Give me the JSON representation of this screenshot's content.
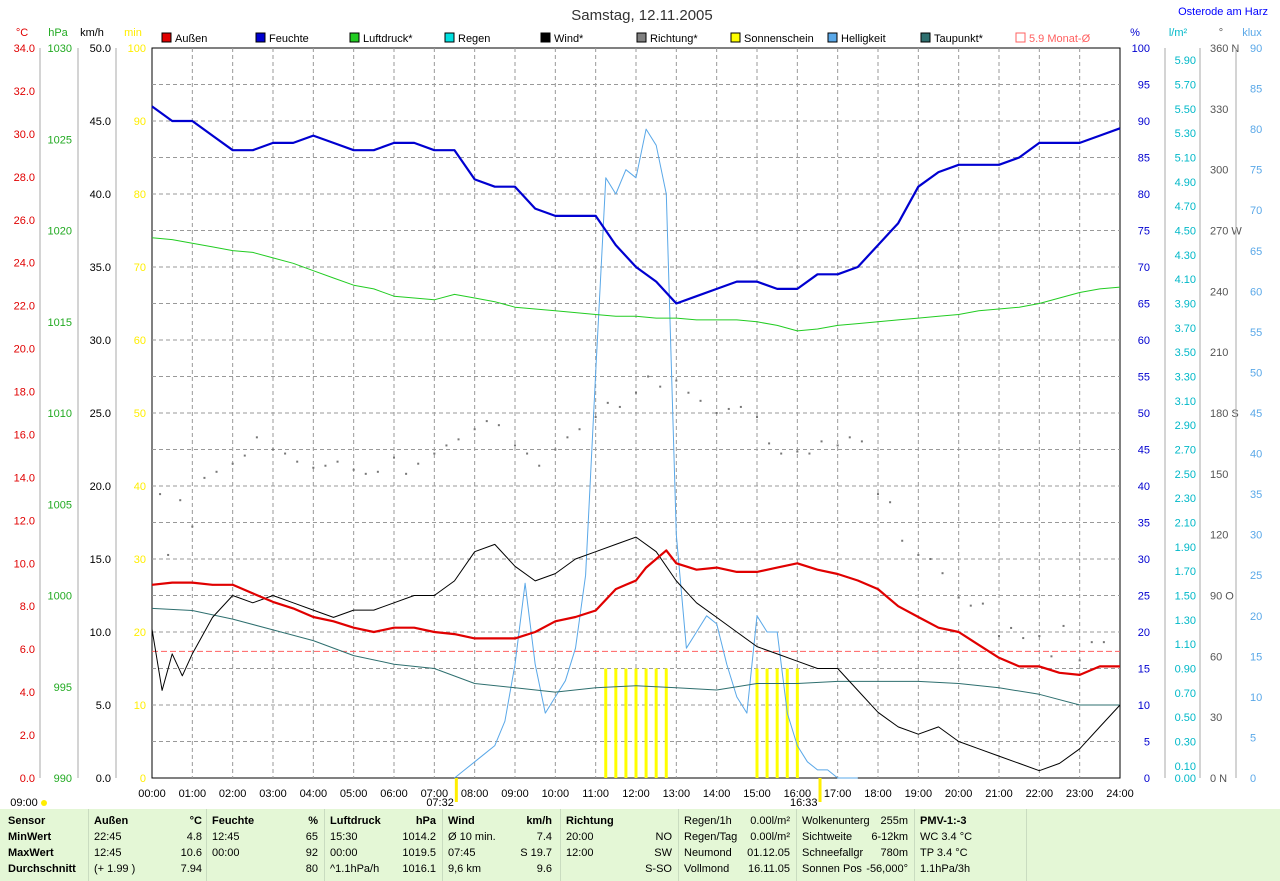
{
  "header": {
    "title": "Samstag, 12.11.2005",
    "location": "Osterode am Harz"
  },
  "colors": {
    "aussen": "#e00000",
    "feuchte": "#0000d0",
    "luftdruck": "#22cc22",
    "regen": "#00e0e0",
    "wind": "#000000",
    "richtung": "#808080",
    "sonne": "#ffff00",
    "helligkeit": "#5aa8e8",
    "taupunkt": "#2e6f6f",
    "monat": "#ff6060"
  },
  "legend": [
    {
      "label": "Außen",
      "color": "#e00000"
    },
    {
      "label": "Feuchte",
      "color": "#0000d0"
    },
    {
      "label": "Luftdruck*",
      "color": "#22cc22"
    },
    {
      "label": "Regen",
      "color": "#00e0e0"
    },
    {
      "label": "Wind*",
      "color": "#000000"
    },
    {
      "label": "Richtung*",
      "color": "#808080"
    },
    {
      "label": "Sonnenschein",
      "color": "#ffff00"
    },
    {
      "label": "Helligkeit",
      "color": "#5aa8e8"
    },
    {
      "label": "Taupunkt*",
      "color": "#2e6f6f"
    },
    {
      "label": "5.9 Monat-Ø",
      "color": "#ff6060"
    }
  ],
  "chart_data": {
    "type": "line",
    "x_ticks": [
      "00:00",
      "01:00",
      "02:00",
      "03:00",
      "04:00",
      "05:00",
      "06:00",
      "07:00",
      "08:00",
      "09:00",
      "10:00",
      "11:00",
      "12:00",
      "13:00",
      "14:00",
      "15:00",
      "16:00",
      "17:00",
      "18:00",
      "19:00",
      "20:00",
      "21:00",
      "22:00",
      "23:00",
      "24:00"
    ],
    "axes": {
      "temp": {
        "unit": "°C",
        "ticks": [
          "34.0",
          "32.0",
          "30.0",
          "28.0",
          "26.0",
          "24.0",
          "22.0",
          "20.0",
          "18.0",
          "16.0",
          "14.0",
          "12.0",
          "10.0",
          "8.0",
          "6.0",
          "4.0",
          "2.0",
          "0.0"
        ]
      },
      "hpa": {
        "unit": "hPa",
        "ticks": [
          "1030",
          "1025",
          "1020",
          "1015",
          "1010",
          "1005",
          "1000",
          "995",
          "990"
        ]
      },
      "kmh": {
        "unit": "km/h",
        "ticks": [
          "50.0",
          "45.0",
          "40.0",
          "35.0",
          "30.0",
          "25.0",
          "20.0",
          "15.0",
          "10.0",
          "5.0",
          "0.0"
        ]
      },
      "min": {
        "unit": "min",
        "ticks": [
          "100",
          "90",
          "80",
          "70",
          "60",
          "50",
          "40",
          "30",
          "20",
          "10",
          "0"
        ]
      },
      "pct": {
        "unit": "%",
        "ticks": [
          "100",
          "95",
          "90",
          "85",
          "80",
          "75",
          "70",
          "65",
          "60",
          "55",
          "50",
          "45",
          "40",
          "35",
          "30",
          "25",
          "20",
          "15",
          "10",
          "5",
          "0"
        ]
      },
      "rain": {
        "unit": "l/m²",
        "ticks": [
          "5.90",
          "5.70",
          "5.50",
          "5.30",
          "5.10",
          "4.90",
          "4.70",
          "4.50",
          "4.30",
          "4.10",
          "3.90",
          "3.70",
          "3.50",
          "3.30",
          "3.10",
          "2.90",
          "2.70",
          "2.50",
          "2.30",
          "2.10",
          "1.90",
          "1.70",
          "1.50",
          "1.30",
          "1.10",
          "0.90",
          "0.70",
          "0.50",
          "0.30",
          "0.10",
          "0.00"
        ]
      },
      "deg": {
        "unit": "°",
        "ticks": [
          "360 N",
          "330",
          "300",
          "270 W",
          "240",
          "210",
          "180 S",
          "150",
          "120",
          "90 O",
          "60",
          "30",
          "0 N"
        ]
      },
      "klux": {
        "unit": "klux",
        "ticks": [
          "90",
          "85",
          "80",
          "75",
          "70",
          "65",
          "60",
          "55",
          "50",
          "45",
          "40",
          "35",
          "30",
          "25",
          "20",
          "15",
          "10",
          "5",
          "0"
        ]
      }
    },
    "series": [
      {
        "name": "Außen",
        "unit": "°C",
        "x": [
          0,
          0.5,
          1,
          1.5,
          2,
          2.5,
          3,
          3.5,
          4,
          4.5,
          5,
          5.5,
          6,
          6.5,
          7,
          7.5,
          8,
          8.5,
          9,
          9.5,
          10,
          10.5,
          11,
          11.25,
          11.5,
          11.75,
          12,
          12.25,
          12.5,
          12.75,
          13,
          13.5,
          14,
          14.5,
          15,
          15.5,
          16,
          16.5,
          17,
          17.5,
          18,
          18.5,
          19,
          19.5,
          20,
          20.5,
          21,
          21.5,
          22,
          22.5,
          23,
          23.5,
          24
        ],
        "y": [
          9.0,
          9.1,
          9.1,
          9.0,
          9.0,
          8.6,
          8.2,
          7.9,
          7.5,
          7.3,
          7.0,
          6.8,
          7.0,
          7.0,
          6.8,
          6.7,
          6.5,
          6.5,
          6.5,
          6.8,
          7.3,
          7.5,
          7.8,
          8.3,
          8.8,
          9.0,
          9.2,
          9.8,
          10.2,
          10.6,
          10.0,
          9.7,
          9.8,
          9.6,
          9.6,
          9.8,
          10.0,
          9.7,
          9.5,
          9.2,
          8.8,
          8.0,
          7.5,
          7.0,
          6.8,
          6.2,
          5.6,
          5.2,
          5.2,
          4.9,
          4.8,
          5.2,
          5.2
        ]
      },
      {
        "name": "Feuchte",
        "unit": "%",
        "x": [
          0,
          0.5,
          1,
          1.5,
          2,
          2.5,
          3,
          3.5,
          4,
          4.5,
          5,
          5.5,
          6,
          6.5,
          7,
          7.5,
          8,
          8.5,
          9,
          9.5,
          10,
          10.5,
          11,
          11.5,
          12,
          12.5,
          13,
          13.5,
          14,
          14.5,
          15,
          15.5,
          16,
          16.5,
          17,
          17.5,
          18,
          18.5,
          19,
          19.5,
          20,
          20.5,
          21,
          21.5,
          22,
          22.5,
          23,
          23.5,
          24
        ],
        "y": [
          92,
          90,
          90,
          88,
          86,
          86,
          87,
          87,
          88,
          87,
          86,
          86,
          87,
          87,
          86,
          86,
          82,
          81,
          81,
          78,
          77,
          77,
          77,
          73,
          70,
          68,
          65,
          66,
          67,
          68,
          68,
          67,
          67,
          69,
          69,
          70,
          73,
          76,
          81,
          83,
          84,
          84,
          84,
          85,
          87,
          87,
          87,
          88,
          89
        ]
      },
      {
        "name": "Luftdruck*",
        "unit": "hPa",
        "x": [
          0,
          0.5,
          1,
          1.5,
          2,
          2.5,
          3,
          3.5,
          4,
          4.5,
          5,
          5.5,
          6,
          6.5,
          7,
          7.5,
          8,
          8.5,
          9,
          9.5,
          10,
          10.5,
          11,
          11.5,
          12,
          12.5,
          13,
          13.5,
          14,
          14.5,
          15,
          15.5,
          16,
          16.5,
          17,
          17.5,
          18,
          18.5,
          19,
          19.5,
          20,
          20.5,
          21,
          21.5,
          22,
          22.5,
          23,
          23.5,
          24
        ],
        "y": [
          1019.6,
          1019.5,
          1019.3,
          1019.1,
          1018.9,
          1018.8,
          1018.5,
          1018.2,
          1017.8,
          1017.4,
          1017.0,
          1016.8,
          1016.4,
          1016.3,
          1016.2,
          1016.5,
          1016.3,
          1016.1,
          1015.8,
          1015.7,
          1015.6,
          1015.5,
          1015.4,
          1015.3,
          1015.3,
          1015.2,
          1015.2,
          1015.1,
          1015.1,
          1015.1,
          1015.0,
          1014.8,
          1014.5,
          1014.6,
          1014.8,
          1014.9,
          1015.0,
          1015.1,
          1015.2,
          1015.3,
          1015.4,
          1015.6,
          1015.7,
          1015.8,
          1016.0,
          1016.3,
          1016.6,
          1016.8,
          1016.9
        ]
      },
      {
        "name": "Wind*",
        "unit": "km/h",
        "x": [
          0,
          0.25,
          0.5,
          0.75,
          1,
          1.5,
          2,
          2.5,
          3,
          3.5,
          4,
          4.5,
          5,
          5.5,
          6,
          6.5,
          7,
          7.5,
          8,
          8.5,
          9,
          9.5,
          10,
          10.5,
          11,
          11.5,
          12,
          12.5,
          13,
          13.5,
          14,
          14.5,
          15,
          15.5,
          16,
          16.5,
          17,
          17.5,
          18,
          18.5,
          19,
          19.5,
          20,
          20.5,
          21,
          21.5,
          22,
          22.5,
          23,
          23.5,
          24
        ],
        "y": [
          10.2,
          6.0,
          8.5,
          7.0,
          8.5,
          11.0,
          12.5,
          12.0,
          12.5,
          12.0,
          11.5,
          11.0,
          11.5,
          11.5,
          12.0,
          12.5,
          12.5,
          13.5,
          15.5,
          16.0,
          14.5,
          13.5,
          14.0,
          15.0,
          15.5,
          16.0,
          16.5,
          15.5,
          13.5,
          12.0,
          11.0,
          10.0,
          9.0,
          8.5,
          8.0,
          7.5,
          7.5,
          6.0,
          4.5,
          3.5,
          3.0,
          3.5,
          2.5,
          2.0,
          1.5,
          1.0,
          0.5,
          1.0,
          2.0,
          3.5,
          5.0
        ]
      },
      {
        "name": "Taupunkt*",
        "unit": "°C",
        "x": [
          0,
          1,
          2,
          3,
          4,
          5,
          6,
          7,
          8,
          9,
          10,
          11,
          12,
          13,
          14,
          15,
          16,
          17,
          18,
          19,
          20,
          21,
          22,
          23,
          24
        ],
        "y": [
          7.9,
          7.8,
          7.4,
          6.9,
          6.4,
          5.7,
          5.3,
          5.1,
          4.4,
          4.2,
          4.0,
          4.2,
          4.3,
          4.2,
          4.1,
          4.4,
          4.4,
          4.5,
          4.5,
          4.5,
          4.4,
          4.2,
          3.9,
          3.4,
          3.4
        ]
      },
      {
        "name": "Helligkeit",
        "unit": "klux",
        "x": [
          7.5,
          7.75,
          8,
          8.25,
          8.5,
          8.75,
          9,
          9.25,
          9.5,
          9.75,
          10,
          10.25,
          10.5,
          10.75,
          11,
          11.25,
          11.5,
          11.75,
          12,
          12.25,
          12.5,
          12.75,
          13,
          13.25,
          13.5,
          13.75,
          14,
          14.25,
          14.5,
          14.75,
          15,
          15.25,
          15.5,
          15.75,
          16,
          16.25,
          16.5,
          16.75,
          17,
          17.5
        ],
        "y": [
          0,
          1,
          2,
          3,
          4,
          7,
          14,
          24,
          14,
          8,
          10,
          12,
          16,
          25,
          50,
          74,
          72,
          75,
          74,
          80,
          78,
          72,
          30,
          16,
          18,
          20,
          19,
          14,
          10,
          8,
          20,
          18,
          18,
          8,
          4,
          2,
          1,
          1,
          0,
          0
        ]
      },
      {
        "name": "Richtung*",
        "unit": "°",
        "type": "scatter",
        "x": [
          0.2,
          0.4,
          0.7,
          1.0,
          1.3,
          1.6,
          2.0,
          2.3,
          2.6,
          3.0,
          3.3,
          3.6,
          4.0,
          4.3,
          4.6,
          5.0,
          5.3,
          5.6,
          6.0,
          6.3,
          6.6,
          7.0,
          7.3,
          7.6,
          8.0,
          8.3,
          8.6,
          9.0,
          9.3,
          9.6,
          10.0,
          10.3,
          10.6,
          11.0,
          11.3,
          11.6,
          12.0,
          12.3,
          12.6,
          13.0,
          13.3,
          13.6,
          14.0,
          14.3,
          14.6,
          15.0,
          15.3,
          15.6,
          16.0,
          16.3,
          16.6,
          17.0,
          17.3,
          17.6,
          18.0,
          18.3,
          18.6,
          19.0,
          19.3,
          19.6,
          20.0,
          20.3,
          20.6,
          21.0,
          21.3,
          21.6,
          22.0,
          22.3,
          22.6,
          23.0,
          23.3,
          23.6
        ],
        "y": [
          140,
          110,
          137,
          124,
          148,
          151,
          155,
          159,
          168,
          162,
          160,
          156,
          153,
          154,
          156,
          152,
          150,
          151,
          158,
          150,
          155,
          160,
          164,
          167,
          172,
          176,
          174,
          164,
          160,
          154,
          162,
          168,
          172,
          178,
          185,
          183,
          190,
          198,
          193,
          196,
          190,
          186,
          180,
          182,
          183,
          178,
          165,
          160,
          161,
          160,
          166,
          164,
          168,
          166,
          140,
          136,
          117,
          110,
          108,
          101,
          89,
          85,
          86,
          70,
          74,
          69,
          70,
          60,
          75,
          58,
          67,
          67
        ]
      },
      {
        "name": "Sonnenschein",
        "unit": "min",
        "type": "bar",
        "x": [
          11.25,
          11.5,
          11.75,
          12.0,
          12.25,
          12.5,
          12.75,
          15.0,
          15.25,
          15.5,
          15.75,
          16.0
        ],
        "y": [
          15,
          15,
          15,
          15,
          15,
          15,
          15,
          15,
          15,
          15,
          15,
          15
        ]
      }
    ],
    "reference_lines": [
      {
        "name": "5.9 Monat-Ø",
        "value": 5.9,
        "unit": "°C"
      }
    ],
    "markers": {
      "sunrise": "07:32",
      "sunset": "16:33",
      "start": "09:00"
    }
  },
  "footer": {
    "col1": {
      "header": "Sensor",
      "rows": [
        "MinWert",
        "MaxWert",
        "Durchschnitt"
      ]
    },
    "col2": {
      "header": "Außen",
      "unit": "°C",
      "rows": [
        [
          "22:45",
          "4.8"
        ],
        [
          "12:45",
          "10.6"
        ],
        [
          "(+ 1.99 )",
          "7.94"
        ]
      ]
    },
    "col3": {
      "header": "Feuchte",
      "unit": "%",
      "rows": [
        [
          "12:45",
          "65"
        ],
        [
          "00:00",
          "92"
        ],
        [
          "",
          "80"
        ]
      ]
    },
    "col4": {
      "header": "Luftdruck",
      "unit": "hPa",
      "rows": [
        [
          "15:30",
          "1014.2"
        ],
        [
          "00:00",
          "1019.5"
        ],
        [
          "^1.1hPa/h",
          "1016.1"
        ]
      ]
    },
    "col5": {
      "header": "Wind",
      "unit": "km/h",
      "rows": [
        [
          "Ø 10 min.",
          "7.4"
        ],
        [
          "07:45",
          "S 19.7"
        ],
        [
          "9,6 km",
          "9.6"
        ]
      ]
    },
    "col6": {
      "header": "Richtung",
      "rows": [
        [
          "20:00",
          "NO"
        ],
        [
          "12:00",
          "SW"
        ],
        [
          "",
          "S-SO"
        ]
      ]
    },
    "col7": {
      "rows": [
        [
          "Regen/1h",
          "0.00l/m²"
        ],
        [
          "Regen/Tag",
          "0.00l/m²"
        ],
        [
          "Neumond",
          "01.12.05"
        ],
        [
          "Vollmond",
          "16.11.05"
        ]
      ]
    },
    "col8": {
      "rows": [
        [
          "Wolkenunterg",
          "255m"
        ],
        [
          "Sichtweite",
          "6-12km"
        ],
        [
          "Schneefallgr",
          "780m"
        ],
        [
          "Sonnen Pos",
          "-56,000°"
        ]
      ]
    },
    "col9": {
      "header": "PMV-1:-3",
      "rows": [
        "WC 3.4 °C",
        "TP 3.4 °C",
        "1.1hPa/3h"
      ]
    }
  }
}
